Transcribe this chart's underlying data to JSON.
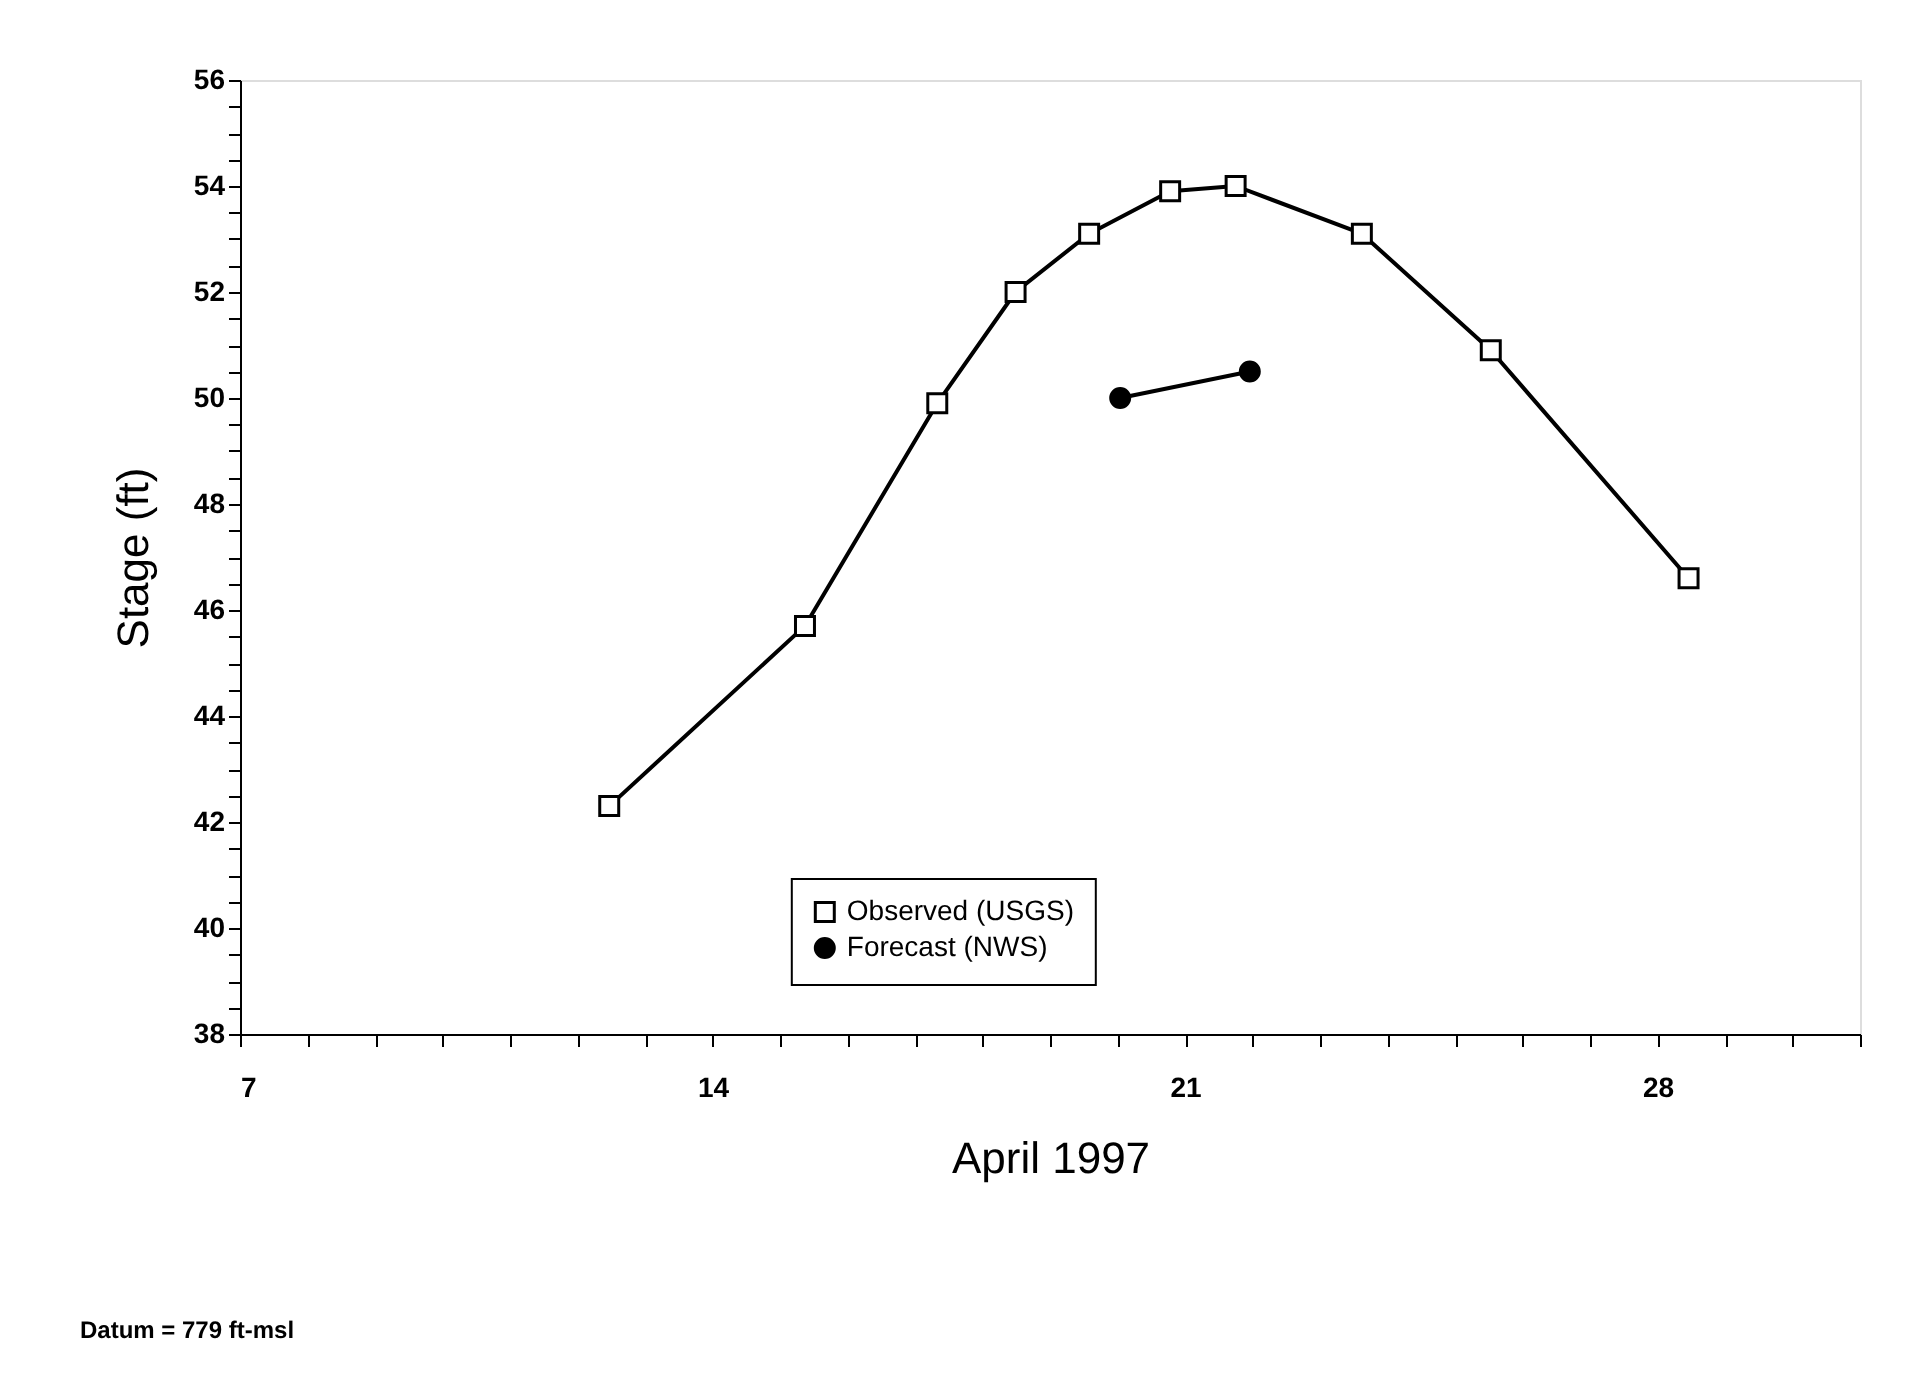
{
  "chart_data": {
    "type": "line",
    "xlabel": "April 1997",
    "ylabel": "Stage (ft)",
    "series": [
      {
        "name": "Observed (USGS)",
        "color": "#000000",
        "marker": "square",
        "x": [
          12.47,
          15.37,
          17.33,
          18.49,
          19.58,
          20.78,
          21.75,
          23.62,
          25.53,
          28.46
        ],
        "values": [
          42.3,
          45.7,
          49.9,
          52.0,
          53.1,
          53.9,
          54.0,
          53.1,
          50.9,
          46.6
        ]
      },
      {
        "name": "Forecast (NWS)",
        "color": "#000000",
        "marker": "circle",
        "x": [
          20.04,
          21.96
        ],
        "values": [
          50.0,
          50.5
        ]
      }
    ],
    "xlim": [
      7,
      31
    ],
    "ylim": [
      38,
      56
    ],
    "xticks": [
      7,
      {
        "value": 8,
        "label": null
      },
      {
        "value": 9,
        "label": null
      },
      {
        "value": 10,
        "label": null
      },
      {
        "value": 11,
        "label": null
      },
      {
        "value": 12,
        "label": null
      },
      {
        "value": 13,
        "label": null
      },
      14,
      {
        "value": 15,
        "label": null
      },
      {
        "value": 16,
        "label": null
      },
      {
        "value": 17,
        "label": null
      },
      {
        "value": 18,
        "label": null
      },
      {
        "value": 19,
        "label": null
      },
      {
        "value": 20,
        "label": null
      },
      21,
      {
        "value": 22,
        "label": null
      },
      {
        "value": 23,
        "label": null
      },
      {
        "value": 24,
        "label": null
      },
      {
        "value": 25,
        "label": null
      },
      {
        "value": 26,
        "label": null
      },
      {
        "value": 27,
        "label": null
      },
      28,
      {
        "value": 29,
        "label": null
      },
      {
        "value": 30,
        "label": null
      },
      {
        "value": 31,
        "label": null
      }
    ],
    "yticks": [
      38,
      {
        "value": 38.5,
        "label": null
      },
      {
        "value": 39,
        "label": null
      },
      {
        "value": 39.5,
        "label": null
      },
      40,
      {
        "value": 40.5,
        "label": null
      },
      {
        "value": 41,
        "label": null
      },
      {
        "value": 41.5,
        "label": null
      },
      42,
      {
        "value": 42.5,
        "label": null
      },
      {
        "value": 43,
        "label": null
      },
      {
        "value": 43.5,
        "label": null
      },
      44,
      {
        "value": 44.5,
        "label": null
      },
      {
        "value": 45,
        "label": null
      },
      {
        "value": 45.5,
        "label": null
      },
      46,
      {
        "value": 46.5,
        "label": null
      },
      {
        "value": 47,
        "label": null
      },
      {
        "value": 47.5,
        "label": null
      },
      48,
      {
        "value": 48.5,
        "label": null
      },
      {
        "value": 49,
        "label": null
      },
      {
        "value": 49.5,
        "label": null
      },
      50,
      {
        "value": 50.5,
        "label": null
      },
      {
        "value": 51,
        "label": null
      },
      {
        "value": 51.5,
        "label": null
      },
      52,
      {
        "value": 52.5,
        "label": null
      },
      {
        "value": 53,
        "label": null
      },
      {
        "value": 53.5,
        "label": null
      },
      54,
      {
        "value": 54.5,
        "label": null
      },
      {
        "value": 55,
        "label": null
      },
      {
        "value": 55.5,
        "label": null
      },
      56
    ],
    "grid": false,
    "legend": "bottom",
    "line_style": "solid",
    "annotations": [
      "Datum = 779 ft-msl"
    ]
  }
}
